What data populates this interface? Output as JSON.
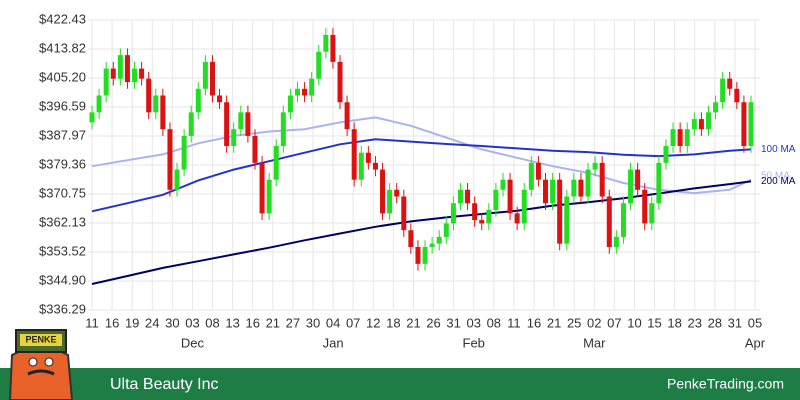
{
  "chart_data": {
    "type": "candlestick",
    "title": "Ulta Beauty Inc",
    "source": "PenkeTrading.com",
    "logo_text": "PENKE",
    "ylim": [
      336.29,
      422.43
    ],
    "yticks": [
      {
        "value": 336.29,
        "label": "$336.29"
      },
      {
        "value": 344.9,
        "label": "$344.90"
      },
      {
        "value": 353.52,
        "label": "$353.52"
      },
      {
        "value": 362.13,
        "label": "$362.13"
      },
      {
        "value": 370.75,
        "label": "$370.75"
      },
      {
        "value": 379.36,
        "label": "$379.36"
      },
      {
        "value": 387.97,
        "label": "$387.97"
      },
      {
        "value": 396.59,
        "label": "$396.59"
      },
      {
        "value": 405.2,
        "label": "$405.20"
      },
      {
        "value": 413.82,
        "label": "$413.82"
      },
      {
        "value": 422.43,
        "label": "$422.43"
      }
    ],
    "x_labels": [
      "11",
      "16",
      "19",
      "24",
      "30",
      "03",
      "08",
      "13",
      "16",
      "21",
      "27",
      "30",
      "04",
      "07",
      "12",
      "18",
      "21",
      "26",
      "31",
      "03",
      "08",
      "11",
      "16",
      "21",
      "25",
      "02",
      "07",
      "10",
      "15",
      "18",
      "23",
      "28",
      "31",
      "05"
    ],
    "month_labels": [
      {
        "label": "Dec",
        "at": 5
      },
      {
        "label": "Jan",
        "at": 12
      },
      {
        "label": "Feb",
        "at": 19
      },
      {
        "label": "Mar",
        "at": 25
      },
      {
        "label": "Apr",
        "at": 33
      }
    ],
    "grid": true,
    "up_color": "#22dd22",
    "down_color": "#dd1111",
    "open": [
      392,
      395,
      400,
      408,
      405,
      412,
      404,
      408,
      405,
      395,
      400,
      390,
      372,
      378,
      388,
      395,
      402,
      410,
      400,
      398,
      385,
      390,
      395,
      388,
      380,
      365,
      375,
      385,
      395,
      400,
      402,
      400,
      405,
      413,
      418,
      410,
      398,
      390,
      375,
      383,
      380,
      378,
      365,
      372,
      370,
      360,
      355,
      350,
      355,
      356,
      358,
      362,
      368,
      372,
      368,
      363,
      362,
      366,
      372,
      375,
      365,
      362,
      372,
      380,
      375,
      368,
      375,
      356,
      370,
      375,
      370,
      378,
      380,
      370,
      355,
      358,
      368,
      378,
      372,
      362,
      368,
      380,
      385,
      390,
      385,
      390,
      393,
      390,
      395,
      398,
      405,
      402,
      398,
      385
    ],
    "high": [
      397,
      402,
      410,
      410,
      414,
      414,
      410,
      410,
      407,
      402,
      402,
      392,
      380,
      390,
      397,
      404,
      412,
      412,
      402,
      400,
      392,
      397,
      397,
      390,
      382,
      377,
      387,
      397,
      402,
      404,
      404,
      407,
      415,
      420,
      420,
      412,
      400,
      392,
      385,
      385,
      382,
      380,
      374,
      374,
      372,
      362,
      357,
      357,
      358,
      360,
      364,
      370,
      374,
      374,
      370,
      365,
      368,
      374,
      377,
      377,
      367,
      374,
      382,
      382,
      377,
      377,
      377,
      372,
      377,
      377,
      380,
      382,
      382,
      372,
      360,
      370,
      380,
      380,
      374,
      370,
      382,
      387,
      392,
      392,
      392,
      395,
      395,
      397,
      400,
      407,
      407,
      404,
      400,
      400
    ],
    "low": [
      390,
      393,
      398,
      403,
      403,
      402,
      402,
      403,
      393,
      393,
      388,
      370,
      370,
      376,
      386,
      393,
      400,
      398,
      396,
      383,
      383,
      388,
      386,
      378,
      363,
      363,
      373,
      383,
      393,
      398,
      398,
      398,
      403,
      411,
      408,
      396,
      388,
      373,
      373,
      378,
      376,
      363,
      363,
      368,
      358,
      353,
      348,
      348,
      353,
      354,
      356,
      360,
      366,
      366,
      361,
      360,
      360,
      364,
      370,
      363,
      360,
      360,
      370,
      373,
      366,
      366,
      354,
      354,
      368,
      368,
      368,
      376,
      368,
      353,
      353,
      356,
      366,
      370,
      360,
      360,
      366,
      378,
      383,
      383,
      383,
      388,
      388,
      388,
      393,
      396,
      400,
      396,
      383,
      383
    ],
    "close": [
      395,
      400,
      408,
      405,
      412,
      404,
      408,
      405,
      395,
      400,
      390,
      372,
      378,
      388,
      395,
      402,
      410,
      400,
      398,
      385,
      390,
      395,
      388,
      380,
      365,
      375,
      385,
      395,
      400,
      402,
      400,
      405,
      413,
      418,
      410,
      398,
      390,
      375,
      383,
      380,
      378,
      365,
      372,
      370,
      360,
      355,
      350,
      355,
      356,
      358,
      362,
      368,
      372,
      368,
      363,
      362,
      366,
      372,
      375,
      365,
      362,
      372,
      380,
      375,
      368,
      375,
      356,
      370,
      375,
      370,
      378,
      380,
      370,
      355,
      358,
      368,
      378,
      372,
      362,
      368,
      380,
      385,
      390,
      385,
      390,
      393,
      390,
      395,
      398,
      405,
      402,
      398,
      385,
      398
    ],
    "ma_index": [
      0,
      5,
      10,
      15,
      20,
      25,
      30,
      35,
      40,
      45,
      50,
      55,
      60,
      65,
      70,
      75,
      80,
      85,
      90,
      93
    ],
    "series": [
      {
        "name": "50 MA",
        "color": "#aab2f0",
        "values": [
          379,
          380.8,
          382.5,
          385.8,
          388,
          389.3,
          390,
          392,
          393.5,
          391,
          387.5,
          384,
          381.5,
          379,
          377,
          374,
          372,
          371,
          372,
          375
        ]
      },
      {
        "name": "100 MA",
        "color": "#2233cc",
        "values": [
          365.6,
          368,
          370.5,
          374.8,
          378,
          380.5,
          383,
          385.5,
          387,
          386.3,
          385.6,
          385,
          384.3,
          383.6,
          383.2,
          382.4,
          382,
          382.5,
          383.6,
          384
        ]
      },
      {
        "name": "200 MA",
        "color": "#000066",
        "values": [
          344,
          346.4,
          348.8,
          350.8,
          352.8,
          354.8,
          357,
          359,
          361,
          362.6,
          363.8,
          364.8,
          365.8,
          367.3,
          368.3,
          369.5,
          370.9,
          372.4,
          373.7,
          374.5
        ]
      }
    ]
  }
}
